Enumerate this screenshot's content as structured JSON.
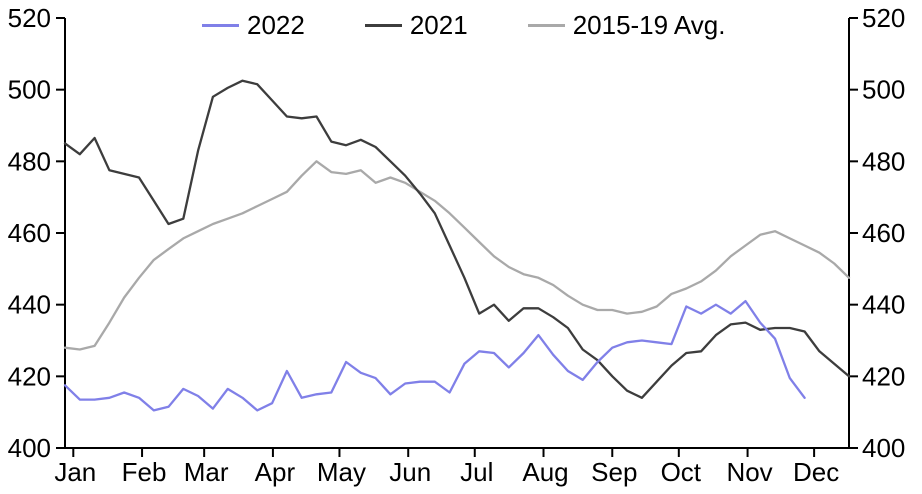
{
  "chart_data": {
    "type": "line",
    "title": "",
    "grid": false,
    "legend_position": "top",
    "background_color": "#ffffff",
    "axis_color": "#000000",
    "y_axis": {
      "min": 400,
      "max": 520,
      "tick_step": 20,
      "ticks": [
        400,
        420,
        440,
        460,
        480,
        500,
        520
      ],
      "dual_sided": true
    },
    "x_axis": {
      "tick_labels": [
        "Jan",
        "Feb",
        "Mar",
        "Apr",
        "May",
        "Jun",
        "Jul",
        "Aug",
        "Sep",
        "Oct",
        "Nov",
        "Dec"
      ]
    },
    "legend": [
      {
        "name": "2022",
        "color": "#8080e8"
      },
      {
        "name": "2021",
        "color": "#3d3d3d"
      },
      {
        "name": "2015-19 Avg.",
        "color": "#a9a9a9"
      }
    ],
    "x_grid_count": 54,
    "series": [
      {
        "name": "2015-19 Avg.",
        "color": "#a9a9a9",
        "values": [
          428,
          427.5,
          428.5,
          435,
          442,
          447.5,
          452.5,
          455.5,
          458.5,
          460.5,
          462.5,
          464,
          465.5,
          467.5,
          469.5,
          471.5,
          476,
          480,
          477,
          476.5,
          477.5,
          474,
          475.5,
          474,
          471.5,
          469,
          465.5,
          461.5,
          457.5,
          453.5,
          450.5,
          448.5,
          447.5,
          445.5,
          442.5,
          440,
          438.5,
          438.5,
          437.5,
          438,
          439.5,
          443,
          444.5,
          446.5,
          449.5,
          453.5,
          456.5,
          459.5,
          460.5,
          458.5,
          456.5,
          454.5,
          451.5,
          447.5
        ]
      },
      {
        "name": "2021",
        "color": "#3d3d3d",
        "values": [
          485,
          482,
          486.5,
          477.5,
          476.5,
          475.5,
          469,
          462.5,
          464,
          483,
          498,
          500.5,
          502.5,
          501.5,
          497,
          492.5,
          492,
          492.5,
          485.5,
          484.5,
          486,
          484,
          480,
          476,
          471,
          465.5,
          456.5,
          447.5,
          437.5,
          440,
          435.5,
          439,
          439,
          436.5,
          433.5,
          427.5,
          424.5,
          420,
          416,
          414,
          418.5,
          423,
          426.5,
          427,
          431.5,
          434.5,
          435,
          433,
          433.5,
          433.5,
          432.5,
          427,
          423.5,
          420
        ]
      },
      {
        "name": "2022",
        "color": "#8080e8",
        "values": [
          417.5,
          413.5,
          413.5,
          414,
          415.5,
          414,
          410.5,
          411.5,
          416.5,
          414.5,
          411,
          416.5,
          414,
          410.5,
          412.5,
          421.5,
          414,
          415,
          415.5,
          424,
          421,
          419.5,
          415,
          418,
          418.5,
          418.5,
          415.5,
          423.5,
          427,
          426.5,
          422.5,
          426.5,
          431.5,
          426,
          421.5,
          419,
          424,
          428,
          429.5,
          430,
          429.5,
          429,
          439.5,
          437.5,
          440,
          437.5,
          441,
          435,
          430.5,
          419.5,
          414
        ]
      }
    ]
  }
}
